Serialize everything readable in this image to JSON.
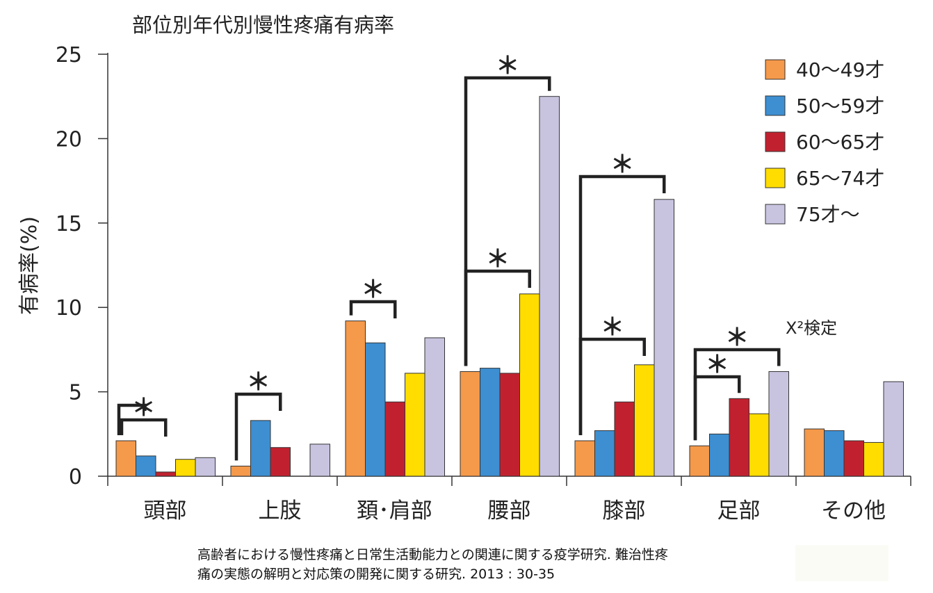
{
  "chart_data": {
    "type": "bar",
    "title": "部位別年代別慢性疼痛有病率",
    "xlabel": "",
    "ylabel": "有病率(%)",
    "ylim": [
      0,
      25
    ],
    "yticks": [
      0,
      5,
      10,
      15,
      20,
      25
    ],
    "categories": [
      "頭部",
      "上肢",
      "頚･肩部",
      "腰部",
      "膝部",
      "足部",
      "その他"
    ],
    "series": [
      {
        "name": "40～49才",
        "color": "#f5994a",
        "values": [
          2.1,
          0.6,
          9.2,
          6.2,
          2.1,
          1.8,
          2.8
        ]
      },
      {
        "name": "50～59才",
        "color": "#3d8fd2",
        "values": [
          1.2,
          3.3,
          7.9,
          6.4,
          2.7,
          2.5,
          2.7
        ]
      },
      {
        "name": "60～65才",
        "color": "#c1212f",
        "values": [
          0.25,
          1.7,
          4.4,
          6.1,
          4.4,
          4.6,
          2.1
        ]
      },
      {
        "name": "65～74才",
        "color": "#ffdd00",
        "values": [
          1.0,
          0,
          6.1,
          10.8,
          6.6,
          3.7,
          2.0
        ]
      },
      {
        "name": "75才～",
        "color": "#c8c4e0",
        "values": [
          1.1,
          1.9,
          8.2,
          22.5,
          16.4,
          6.2,
          5.6
        ]
      }
    ],
    "legend_position": "top-right",
    "grid": false,
    "annotations": [
      {
        "category": "頭部",
        "from_series": 0,
        "to_series": 2,
        "label": "＊"
      },
      {
        "category": "頭部",
        "from_series": 0,
        "to_series": 0,
        "label": "",
        "height": 4.2
      },
      {
        "category": "上肢",
        "from_series": 0,
        "to_series": 2,
        "label": "＊"
      },
      {
        "category": "頚･肩部",
        "from_series": 0,
        "to_series": 2,
        "label": "＊"
      },
      {
        "category": "腰部",
        "from_series": 0,
        "to_series": 3,
        "label": "＊"
      },
      {
        "category": "腰部",
        "from_series": 0,
        "to_series": 4,
        "label": "＊"
      },
      {
        "category": "膝部",
        "from_series": 0,
        "to_series": 3,
        "label": "＊"
      },
      {
        "category": "膝部",
        "from_series": 0,
        "to_series": 4,
        "label": "＊"
      },
      {
        "category": "足部",
        "from_series": 0,
        "to_series": 2,
        "label": "＊"
      },
      {
        "category": "足部",
        "from_series": 0,
        "to_series": 4,
        "label": "＊"
      }
    ],
    "test_label": "X²検定"
  },
  "source": {
    "line1": "高齢者における慢性疼痛と日常生活動能力との関連に関する疫学研究. 難治性疼",
    "line2": "痛の実態の解明と対応策の開発に関する研究. 2013 : 30-35"
  }
}
